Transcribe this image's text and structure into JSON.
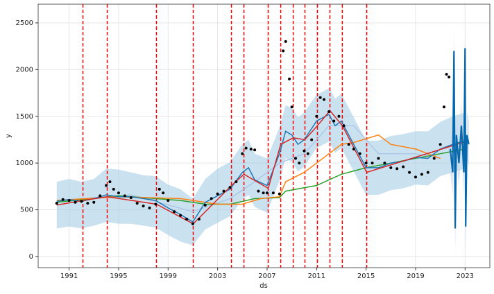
{
  "chart_data": {
    "type": "line",
    "xlabel": "ds",
    "ylabel": "y",
    "xlim": [
      1988.5,
      2025.0
    ],
    "ylim": [
      -119,
      2700
    ],
    "xticks": [
      1991,
      1995,
      1999,
      2003,
      2007,
      2011,
      2015,
      2019,
      2023
    ],
    "yticks": [
      0,
      500,
      1000,
      1500,
      2000,
      2500
    ],
    "grid": true,
    "band": {
      "color": "#9ecae1",
      "x": [
        1990,
        1991,
        1992,
        1993,
        1994,
        1995,
        1996,
        1997,
        1998,
        1999,
        2000,
        2001,
        2002,
        2003,
        2004,
        2005,
        2005.5,
        2006,
        2007,
        2008,
        2008.5,
        2009,
        2009.5,
        2010,
        2010.5,
        2011,
        2012,
        2012.5,
        2013,
        2014,
        2015,
        2016,
        2017,
        2018,
        2019,
        2020,
        2021,
        2022,
        2023
      ],
      "lower": [
        300,
        320,
        300,
        330,
        370,
        350,
        350,
        330,
        310,
        230,
        160,
        120,
        290,
        360,
        430,
        610,
        660,
        530,
        470,
        810,
        1050,
        1010,
        910,
        960,
        1060,
        1160,
        1230,
        1110,
        1160,
        910,
        660,
        660,
        710,
        730,
        770,
        760,
        860,
        900,
        940
      ],
      "upper": [
        800,
        830,
        800,
        830,
        940,
        930,
        900,
        870,
        860,
        770,
        720,
        620,
        830,
        940,
        1010,
        1200,
        1250,
        1100,
        1050,
        1380,
        1620,
        1590,
        1490,
        1540,
        1640,
        1730,
        1800,
        1690,
        1740,
        1490,
        1240,
        1240,
        1290,
        1310,
        1340,
        1340,
        1440,
        1500,
        1540
      ]
    },
    "forecast_band": {
      "color": "#c6dbef",
      "x": [
        2021.8,
        2022.0,
        2022.1,
        2022.2,
        2022.3,
        2022.5,
        2022.7,
        2022.9,
        2023.0,
        2023.05,
        2023.15,
        2023.3
      ],
      "lower": [
        900,
        650,
        1950,
        20,
        1050,
        750,
        1150,
        650,
        1980,
        40,
        1050,
        950
      ],
      "upper": [
        1400,
        1150,
        2470,
        560,
        1550,
        1250,
        1650,
        1150,
        2550,
        600,
        1550,
        1450
      ]
    },
    "series": [
      {
        "color": "#aec7e8",
        "x": [
          1990,
          1996,
          2001,
          2004,
          2006,
          2008,
          2010,
          2011,
          2012,
          2014,
          2016,
          2019,
          2021
        ],
        "values": [
          600,
          660,
          480,
          620,
          800,
          1000,
          1100,
          1250,
          1400,
          1400,
          1100,
          1100,
          1050
        ]
      },
      {
        "color": "#2ca02c",
        "x": [
          1990,
          1995,
          2000,
          2002,
          2004,
          2006,
          2008,
          2008.5,
          2011,
          2013,
          2015,
          2017,
          2019,
          2021,
          2023
        ],
        "values": [
          580,
          650,
          600,
          560,
          560,
          620,
          630,
          700,
          760,
          880,
          950,
          1000,
          1050,
          1100,
          1150
        ]
      },
      {
        "color": "#ff7f0e",
        "x": [
          1990,
          1995,
          2000,
          2003,
          2005,
          2006.5,
          2008,
          2008.5,
          2010,
          2011,
          2013,
          2014,
          2016,
          2017,
          2019,
          2020,
          2021
        ],
        "values": [
          600,
          640,
          620,
          560,
          560,
          620,
          640,
          800,
          900,
          1000,
          1200,
          1220,
          1300,
          1200,
          1150,
          1100,
          1050
        ]
      },
      {
        "color": "#1f77b4",
        "x": [
          1990,
          1991,
          1992,
          1993,
          1994,
          1995,
          1996,
          1997,
          1998,
          1999,
          2000,
          2001,
          2002,
          2003,
          2004,
          2005,
          2005.5,
          2006,
          2007,
          2008,
          2008.5,
          2009,
          2009.5,
          2010,
          2010.5,
          2011,
          2012,
          2012.5,
          2013,
          2014,
          2015,
          2016,
          2017,
          2018,
          2019,
          2020,
          2021,
          2022,
          2023
        ],
        "values": [
          590,
          610,
          590,
          620,
          660,
          640,
          640,
          620,
          600,
          520,
          450,
          370,
          580,
          650,
          720,
          900,
          950,
          820,
          760,
          1100,
          1340,
          1300,
          1200,
          1250,
          1350,
          1450,
          1520,
          1400,
          1450,
          1200,
          950,
          950,
          1000,
          1020,
          1060,
          1050,
          1150,
          1200,
          1240
        ]
      },
      {
        "color": "#d62728",
        "x": [
          1990,
          1992.12,
          1994.08,
          1998.06,
          2001.03,
          2004.12,
          2005.13,
          2007.09,
          2008.1,
          2009.11,
          2010.06,
          2011.07,
          2012.08,
          2013.08,
          2015.05,
          2023.3
        ],
        "values": [
          550,
          600,
          640,
          560,
          350,
          760,
          880,
          730,
          1200,
          1270,
          1250,
          1400,
          1560,
          1400,
          900,
          1240
        ]
      },
      {
        "color": "#0868ac",
        "width": 2.2,
        "x": [
          2021.8,
          2022.0,
          2022.1,
          2022.2,
          2022.3,
          2022.5,
          2022.7,
          2022.9,
          2023.0,
          2023.05,
          2023.15,
          2023.3
        ],
        "values": [
          1150,
          900,
          2200,
          300,
          1300,
          1000,
          1400,
          900,
          2230,
          320,
          1300,
          1200
        ]
      }
    ],
    "points": {
      "color": "#000000",
      "x": [
        1990.0,
        1990.5,
        1991.0,
        1991.5,
        1992.0,
        1992.5,
        1993.0,
        1993.5,
        1994.0,
        1994.3,
        1994.6,
        1995.0,
        1995.5,
        1996.0,
        1996.5,
        1997.0,
        1997.5,
        1998.0,
        1998.3,
        1998.6,
        1999.0,
        1999.5,
        2000.0,
        2000.5,
        2001.0,
        2001.5,
        2002.0,
        2002.5,
        2003.0,
        2003.5,
        2004.0,
        2004.5,
        2005.0,
        2005.3,
        2005.7,
        2006.0,
        2006.3,
        2006.7,
        2007.0,
        2007.5,
        2008.0,
        2008.3,
        2008.5,
        2008.8,
        2009.0,
        2009.3,
        2009.6,
        2010.0,
        2010.3,
        2010.6,
        2011.0,
        2011.3,
        2011.6,
        2012.0,
        2012.4,
        2012.8,
        2013.2,
        2013.6,
        2014.0,
        2014.5,
        2015.0,
        2015.5,
        2016.0,
        2016.5,
        2017.0,
        2017.5,
        2018.0,
        2018.5,
        2019.0,
        2019.5,
        2020.0,
        2020.5,
        2021.0,
        2021.3,
        2021.5,
        2021.7
      ],
      "values": [
        570,
        610,
        600,
        580,
        590,
        570,
        580,
        650,
        760,
        800,
        720,
        680,
        650,
        630,
        570,
        540,
        520,
        560,
        720,
        680,
        600,
        480,
        440,
        400,
        350,
        400,
        550,
        620,
        670,
        700,
        740,
        800,
        1100,
        1160,
        1150,
        1140,
        700,
        680,
        680,
        680,
        670,
        2200,
        2300,
        1900,
        1600,
        1050,
        1000,
        1130,
        1100,
        1250,
        1500,
        1700,
        1680,
        1550,
        1450,
        1500,
        1400,
        1200,
        1150,
        1100,
        1000,
        1000,
        1050,
        1000,
        950,
        940,
        960,
        900,
        850,
        880,
        900,
        1050,
        1200,
        1600,
        1950,
        1920
      ]
    },
    "changepoints": [
      1992.12,
      1994.08,
      1998.06,
      2001.03,
      2004.12,
      2005.13,
      2007.09,
      2008.1,
      2009.11,
      2010.06,
      2011.07,
      2012.08,
      2013.08,
      2015.05
    ],
    "changepoint_color": "#ff0000"
  }
}
